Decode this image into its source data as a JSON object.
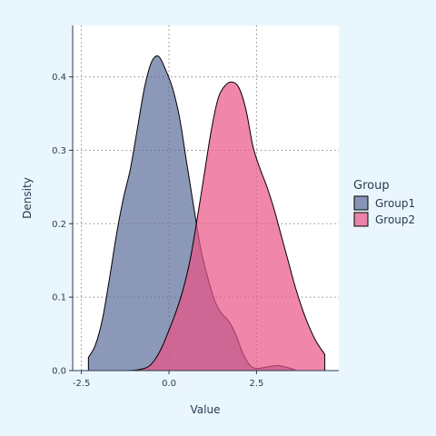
{
  "chart_data": {
    "type": "area",
    "subtype": "density",
    "xlabel": "Value",
    "ylabel": "Density",
    "xlim": [
      -2.75,
      4.85
    ],
    "ylim": [
      0,
      0.47
    ],
    "xticks": [
      -2.5,
      0.0,
      2.5
    ],
    "xtick_labels": [
      "-2.5",
      "0.0",
      "2.5"
    ],
    "yticks": [
      0.0,
      0.1,
      0.2,
      0.3,
      0.4
    ],
    "ytick_labels": [
      "0.0",
      "0.1",
      "0.2",
      "0.3",
      "0.4"
    ],
    "grid": true,
    "legend": {
      "title": "Group",
      "position": "right"
    },
    "series": [
      {
        "name": "Group1",
        "color": "#5b6c98",
        "points": [
          [
            -2.3,
            0.018
          ],
          [
            -2.1,
            0.035
          ],
          [
            -1.9,
            0.07
          ],
          [
            -1.7,
            0.125
          ],
          [
            -1.5,
            0.185
          ],
          [
            -1.3,
            0.235
          ],
          [
            -1.1,
            0.275
          ],
          [
            -0.9,
            0.33
          ],
          [
            -0.7,
            0.385
          ],
          [
            -0.5,
            0.42
          ],
          [
            -0.3,
            0.428
          ],
          [
            -0.1,
            0.41
          ],
          [
            0.1,
            0.385
          ],
          [
            0.3,
            0.345
          ],
          [
            0.5,
            0.285
          ],
          [
            0.7,
            0.225
          ],
          [
            0.9,
            0.168
          ],
          [
            1.1,
            0.128
          ],
          [
            1.3,
            0.096
          ],
          [
            1.5,
            0.078
          ],
          [
            1.7,
            0.068
          ],
          [
            1.9,
            0.05
          ],
          [
            2.1,
            0.025
          ],
          [
            2.3,
            0.008
          ],
          [
            2.5,
            0.003
          ],
          [
            2.8,
            0.005
          ],
          [
            3.1,
            0.007
          ],
          [
            3.4,
            0.004
          ],
          [
            3.6,
            0.001
          ]
        ]
      },
      {
        "name": "Group2",
        "color": "#ea5284",
        "points": [
          [
            -1.2,
            0.0
          ],
          [
            -0.9,
            0.001
          ],
          [
            -0.6,
            0.005
          ],
          [
            -0.4,
            0.015
          ],
          [
            -0.2,
            0.032
          ],
          [
            0.0,
            0.055
          ],
          [
            0.2,
            0.08
          ],
          [
            0.4,
            0.11
          ],
          [
            0.6,
            0.15
          ],
          [
            0.8,
            0.205
          ],
          [
            1.0,
            0.265
          ],
          [
            1.2,
            0.325
          ],
          [
            1.4,
            0.37
          ],
          [
            1.6,
            0.388
          ],
          [
            1.8,
            0.393
          ],
          [
            2.0,
            0.385
          ],
          [
            2.2,
            0.355
          ],
          [
            2.4,
            0.305
          ],
          [
            2.6,
            0.275
          ],
          [
            2.8,
            0.25
          ],
          [
            3.0,
            0.22
          ],
          [
            3.2,
            0.185
          ],
          [
            3.4,
            0.15
          ],
          [
            3.6,
            0.115
          ],
          [
            3.8,
            0.085
          ],
          [
            4.0,
            0.06
          ],
          [
            4.2,
            0.04
          ],
          [
            4.45,
            0.022
          ]
        ]
      }
    ]
  }
}
